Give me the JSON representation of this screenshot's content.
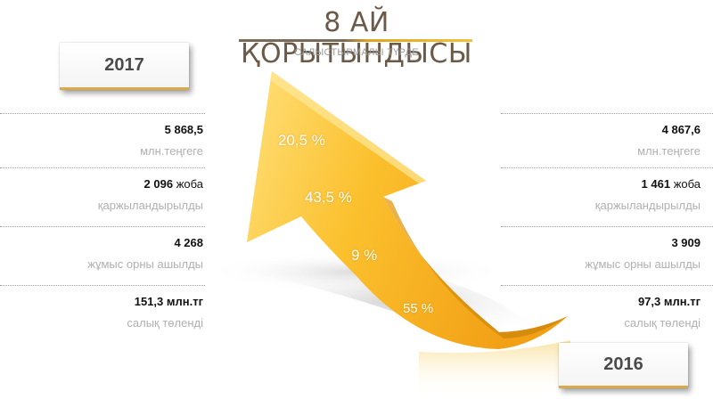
{
  "title": "8 АЙ ҚОРЫТЫНДЫСЫ",
  "subtitle": "САЛЫСТЫРМАЛЫ ТҮРДЕ",
  "year_left": "2017",
  "year_right": "2016",
  "stats_2017": [
    {
      "value": "5 868,5",
      "unit": "",
      "desc": "млн.теңгеге"
    },
    {
      "value": "2 096",
      "unit": " жоба",
      "desc": "қаржыландырылды"
    },
    {
      "value": "4 268",
      "unit": "",
      "desc": "жұмыс орны ашылды"
    },
    {
      "value": "151,3 млн.тг",
      "unit": "",
      "desc": "салық төленді"
    }
  ],
  "stats_2016": [
    {
      "value": "4 867,6",
      "unit": "",
      "desc": "млн.теңгеге"
    },
    {
      "value": "1 461",
      "unit": " жоба",
      "desc": "қаржыландырылды"
    },
    {
      "value": "3 909",
      "unit": "",
      "desc": "жұмыс орны ашылды"
    },
    {
      "value": "97,3 млн.тг",
      "unit": "",
      "desc": "салық төленді"
    }
  ],
  "growth": [
    "20,5 %",
    "43,5 %",
    "9 %",
    "55 %"
  ],
  "colors": {
    "arrow_light": "#ffd85a",
    "arrow_dark": "#f2a91a",
    "title": "#6b5a48",
    "accent": "#e0a31f"
  }
}
